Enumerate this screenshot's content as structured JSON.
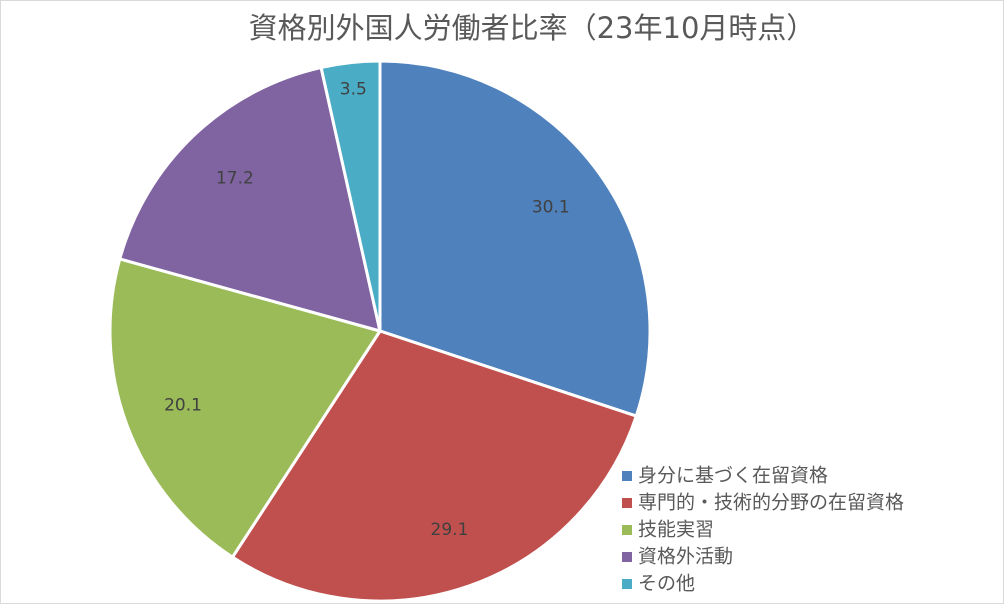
{
  "chart_data": {
    "type": "pie",
    "title": "資格別外国人労働者比率（23年10月時点）",
    "categories": [
      "身分に基づく在留資格",
      "専門的・技術的分野の在留資格",
      "技能実習",
      "資格外活動",
      "その他"
    ],
    "values": [
      30.1,
      29.1,
      20.1,
      17.2,
      3.5
    ],
    "colors": [
      "#4f81bd",
      "#c0504d",
      "#9bbb59",
      "#8064a2",
      "#4bacc6"
    ],
    "legend": "bottom-right"
  }
}
